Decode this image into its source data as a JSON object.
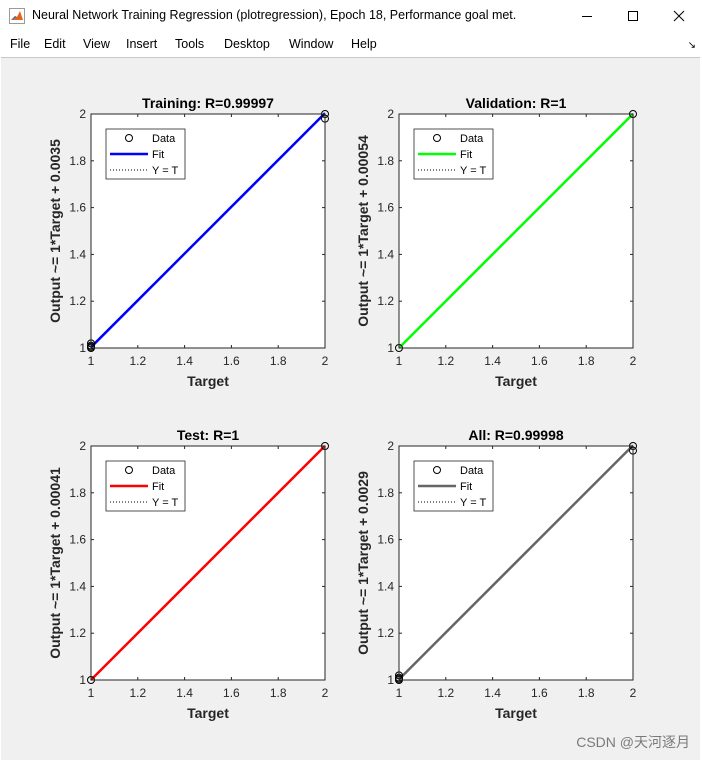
{
  "window": {
    "title": "Neural Network Training Regression (plotregression), Epoch 18, Performance goal met.",
    "icon": "matlab-logo-icon"
  },
  "menu": [
    "File",
    "Edit",
    "View",
    "Insert",
    "Tools",
    "Desktop",
    "Window",
    "Help"
  ],
  "watermark": "CSDN @天河逐月",
  "colors": {
    "training": "#0000ff",
    "validation": "#00ff00",
    "test": "#ff0000",
    "all": "#666666"
  },
  "chart_data": [
    {
      "type": "scatter",
      "title": "Training: R=0.99997",
      "xlabel": "Target",
      "ylabel": "Output ~= 1*Target + 0.0035",
      "xlim": [
        1,
        2
      ],
      "ylim": [
        1,
        2
      ],
      "xticks": [
        1,
        1.2,
        1.4,
        1.6,
        1.8,
        2
      ],
      "yticks": [
        1,
        1.2,
        1.4,
        1.6,
        1.8,
        2
      ],
      "legend": [
        "Data",
        "Fit",
        "Y = T"
      ],
      "legend_position": "top-left",
      "fit_color": "#0000ff",
      "fit": [
        [
          1,
          1.0035
        ],
        [
          2,
          2.0035
        ]
      ],
      "points": [
        [
          1,
          1.0
        ],
        [
          1,
          1.005
        ],
        [
          1,
          1.01
        ],
        [
          1,
          1.02
        ],
        [
          2,
          1.98
        ],
        [
          2,
          2.0
        ]
      ]
    },
    {
      "type": "scatter",
      "title": "Validation: R=1",
      "xlabel": "Target",
      "ylabel": "Output ~= 1*Target + 0.00054",
      "xlim": [
        1,
        2
      ],
      "ylim": [
        1,
        2
      ],
      "xticks": [
        1,
        1.2,
        1.4,
        1.6,
        1.8,
        2
      ],
      "yticks": [
        1,
        1.2,
        1.4,
        1.6,
        1.8,
        2
      ],
      "legend": [
        "Data",
        "Fit",
        "Y = T"
      ],
      "legend_position": "top-left",
      "fit_color": "#00ff00",
      "fit": [
        [
          1,
          1.00054
        ],
        [
          2,
          2.00054
        ]
      ],
      "points": [
        [
          1,
          1.0
        ],
        [
          2,
          2.0
        ]
      ]
    },
    {
      "type": "scatter",
      "title": "Test: R=1",
      "xlabel": "Target",
      "ylabel": "Output ~= 1*Target + 0.00041",
      "xlim": [
        1,
        2
      ],
      "ylim": [
        1,
        2
      ],
      "xticks": [
        1,
        1.2,
        1.4,
        1.6,
        1.8,
        2
      ],
      "yticks": [
        1,
        1.2,
        1.4,
        1.6,
        1.8,
        2
      ],
      "legend": [
        "Data",
        "Fit",
        "Y = T"
      ],
      "legend_position": "top-left",
      "fit_color": "#ff0000",
      "fit": [
        [
          1,
          1.00041
        ],
        [
          2,
          2.00041
        ]
      ],
      "points": [
        [
          1,
          1.0
        ],
        [
          2,
          2.0
        ]
      ]
    },
    {
      "type": "scatter",
      "title": "All: R=0.99998",
      "xlabel": "Target",
      "ylabel": "Output ~= 1*Target + 0.0029",
      "xlim": [
        1,
        2
      ],
      "ylim": [
        1,
        2
      ],
      "xticks": [
        1,
        1.2,
        1.4,
        1.6,
        1.8,
        2
      ],
      "yticks": [
        1,
        1.2,
        1.4,
        1.6,
        1.8,
        2
      ],
      "legend": [
        "Data",
        "Fit",
        "Y = T"
      ],
      "legend_position": "top-left",
      "fit_color": "#666666",
      "fit": [
        [
          1,
          1.0029
        ],
        [
          2,
          2.0029
        ]
      ],
      "points": [
        [
          1,
          1.0
        ],
        [
          1,
          1.005
        ],
        [
          1,
          1.01
        ],
        [
          1,
          1.02
        ],
        [
          2,
          1.98
        ],
        [
          2,
          2.0
        ]
      ]
    }
  ]
}
